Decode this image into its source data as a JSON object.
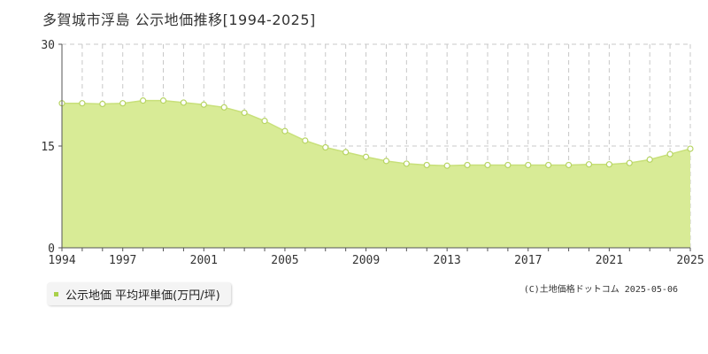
{
  "title": "多賀城市浮島 公示地価推移[1994-2025]",
  "legend": {
    "label": "公示地価 平均坪単価(万円/坪)",
    "color": "#a9d04a"
  },
  "copyright": "(C)土地価格ドットコム 2025-05-06",
  "colors": {
    "area_fill": "#d8eb96",
    "line": "#c8e07a",
    "marker_stroke": "#b7d463",
    "grid": "#c8c8c8"
  },
  "chart_data": {
    "type": "area",
    "title": "多賀城市浮島 公示地価推移[1994-2025]",
    "xlabel": "",
    "ylabel": "",
    "x": [
      1994,
      1995,
      1996,
      1997,
      1998,
      1999,
      2000,
      2001,
      2002,
      2003,
      2004,
      2005,
      2006,
      2007,
      2008,
      2009,
      2010,
      2011,
      2012,
      2013,
      2014,
      2015,
      2016,
      2017,
      2018,
      2019,
      2020,
      2021,
      2022,
      2023,
      2024,
      2025
    ],
    "series": [
      {
        "name": "公示地価 平均坪単価(万円/坪)",
        "values": [
          21.3,
          21.3,
          21.2,
          21.3,
          21.7,
          21.7,
          21.4,
          21.1,
          20.7,
          19.9,
          18.7,
          17.2,
          15.8,
          14.8,
          14.1,
          13.4,
          12.8,
          12.4,
          12.2,
          12.1,
          12.2,
          12.2,
          12.2,
          12.2,
          12.2,
          12.2,
          12.3,
          12.3,
          12.5,
          13.0,
          13.8,
          14.6
        ]
      }
    ],
    "xticks": [
      "1994",
      "1997",
      "2001",
      "2005",
      "2009",
      "2013",
      "2017",
      "2021",
      "2025"
    ],
    "yticks": [
      "0",
      "15",
      "30"
    ],
    "ylim": [
      0,
      30
    ],
    "xlim": [
      1994,
      2025
    ],
    "grid": true
  }
}
